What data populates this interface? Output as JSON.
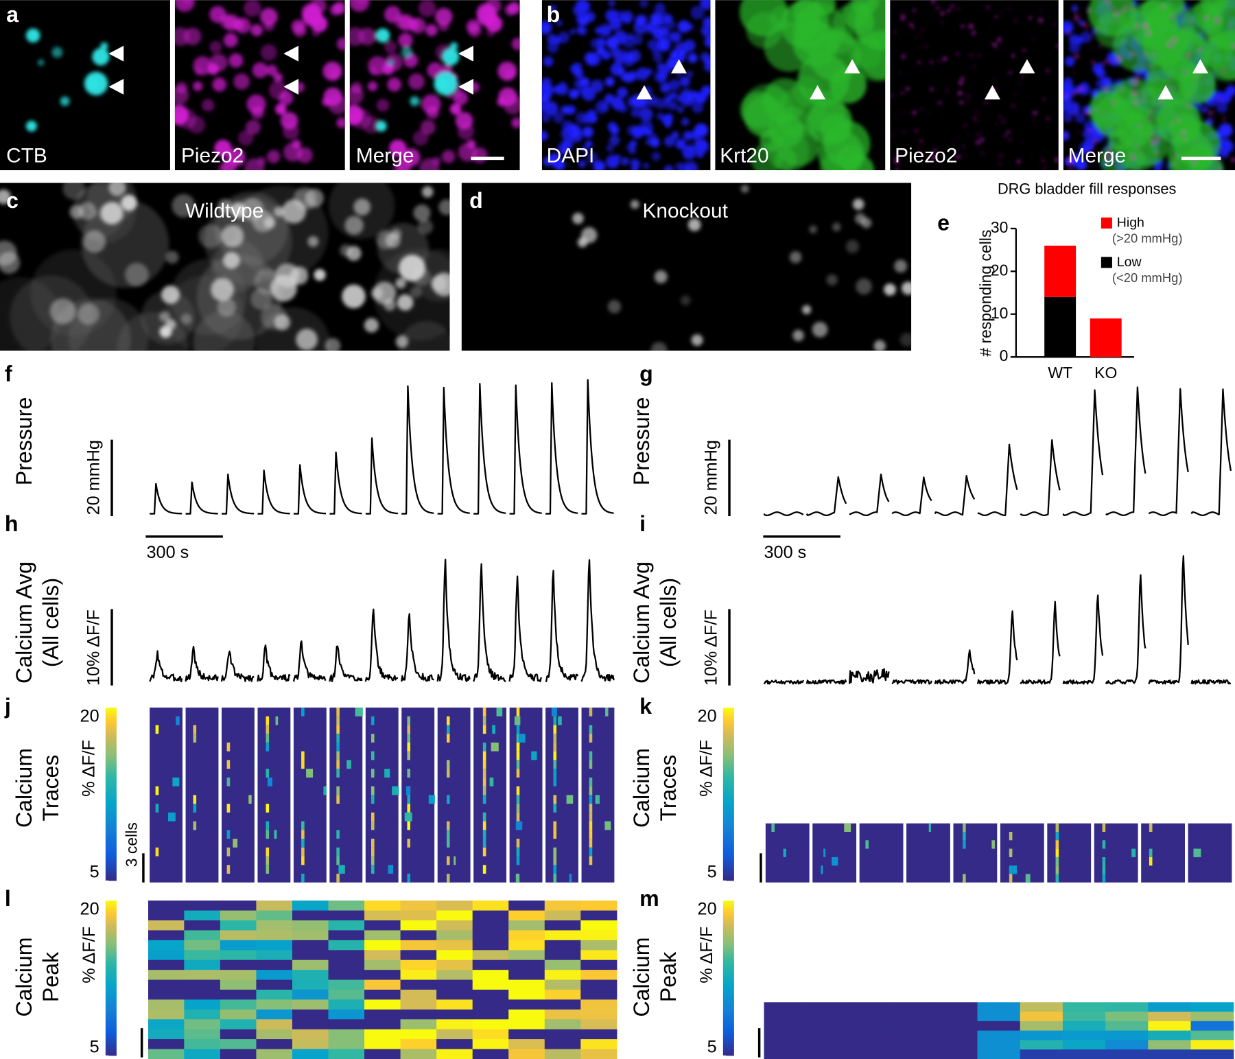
{
  "panels": {
    "a": {
      "letter": "a",
      "labels": [
        "CTB",
        "Piezo2",
        "Merge"
      ]
    },
    "b": {
      "letter": "b",
      "labels": [
        "DAPI",
        "Krt20",
        "Piezo2",
        "Merge"
      ]
    },
    "c": {
      "letter": "c",
      "label": "Wildtype"
    },
    "d": {
      "letter": "d",
      "label": "Knockout"
    },
    "e": {
      "letter": "e"
    },
    "f": {
      "letter": "f",
      "label": "Pressure",
      "scale_y": "20 mmHg",
      "scale_x": "300 s"
    },
    "g": {
      "letter": "g",
      "label": "Pressure",
      "scale_y": "20 mmHg",
      "scale_x": "300 s"
    },
    "h": {
      "letter": "h",
      "label": [
        "Calcium Avg",
        "(All cells)"
      ],
      "scale_y": "10% ΔF/F"
    },
    "i": {
      "letter": "i",
      "label": [
        "Calcium Avg",
        "(All cells)"
      ],
      "scale_y": "10% ΔF/F"
    },
    "j": {
      "letter": "j",
      "label": [
        "Calcium",
        "Traces"
      ],
      "colorbar_label": "% ΔF/F",
      "colorbar_ticks": [
        20,
        5
      ],
      "scale_cells": "3 cells"
    },
    "k": {
      "letter": "k",
      "label": [
        "Calcium",
        "Traces"
      ],
      "colorbar_label": "% ΔF/F",
      "colorbar_ticks": [
        20,
        5
      ]
    },
    "l": {
      "letter": "l",
      "label": [
        "Calcium",
        "Peak"
      ],
      "colorbar_label": "% ΔF/F",
      "colorbar_ticks": [
        20,
        5
      ]
    },
    "m": {
      "letter": "m",
      "label": [
        "Calcium",
        "Peak"
      ],
      "colorbar_label": "% ΔF/F",
      "colorbar_ticks": [
        20,
        5
      ]
    }
  },
  "chart_data": {
    "type": "bar",
    "stacked": true,
    "title": "DRG bladder fill responses",
    "y_label": "# responding cells",
    "categories": [
      "WT",
      "KO"
    ],
    "series": [
      {
        "name": "Low",
        "range_label": "(<20 mmHg)",
        "color": "#000000",
        "values": [
          14,
          0
        ]
      },
      {
        "name": "High",
        "range_label": "(>20 mmHg)",
        "color": "#ff0000",
        "values": [
          12,
          9
        ]
      }
    ],
    "ylim": [
      0,
      30
    ],
    "yticks": [
      0,
      10,
      20,
      30
    ]
  }
}
